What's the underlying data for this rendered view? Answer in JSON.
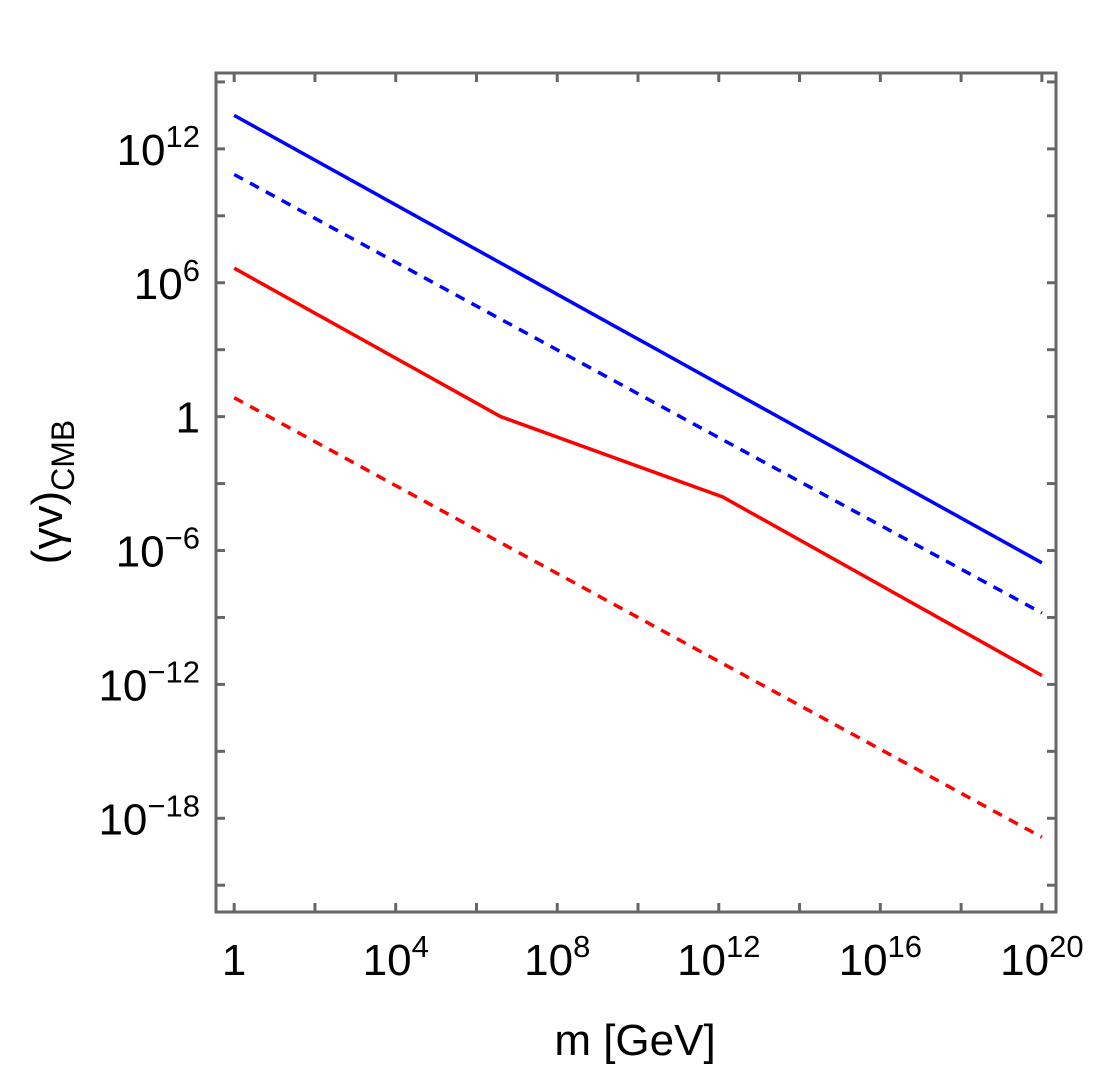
{
  "chart_data": {
    "type": "line",
    "title": "",
    "xlabel": "m [GeV]",
    "ylabel": {
      "main": "(γv)",
      "sub": "CMB"
    },
    "xscale": "log",
    "yscale": "log",
    "xlim_log10": [
      -0.45,
      20.35
    ],
    "ylim_log10": [
      -22.2,
      15.4
    ],
    "grid": false,
    "legend": "none",
    "frame_color": "#666666",
    "x_ticks": [
      {
        "log10": 0,
        "base": "1",
        "exp": ""
      },
      {
        "log10": 4,
        "base": "10",
        "exp": "4"
      },
      {
        "log10": 8,
        "base": "10",
        "exp": "8"
      },
      {
        "log10": 12,
        "base": "10",
        "exp": "12"
      },
      {
        "log10": 16,
        "base": "10",
        "exp": "16"
      },
      {
        "log10": 20,
        "base": "10",
        "exp": "20"
      }
    ],
    "x_minor_ticks_log10": [
      2,
      6,
      10,
      14,
      18
    ],
    "y_ticks": [
      {
        "log10": 12,
        "base": "10",
        "exp": "12"
      },
      {
        "log10": 6,
        "base": "10",
        "exp": "6"
      },
      {
        "log10": 0,
        "base": "1",
        "exp": ""
      },
      {
        "log10": -6,
        "base": "10",
        "exp": "−6"
      },
      {
        "log10": -12,
        "base": "10",
        "exp": "−12"
      },
      {
        "log10": -18,
        "base": "10",
        "exp": "−18"
      }
    ],
    "y_minor_ticks_log10": [
      15,
      9,
      3,
      -3,
      -9,
      -15,
      -21
    ],
    "series": [
      {
        "color": "#0000ff",
        "dash": "solid",
        "points_log10": [
          [
            0,
            13.5
          ],
          [
            20,
            -6.55
          ]
        ]
      },
      {
        "color": "#0000ff",
        "dash": "dashed",
        "points_log10": [
          [
            0,
            10.85
          ],
          [
            20,
            -8.8
          ]
        ]
      },
      {
        "color": "#ff0000",
        "dash": "solid",
        "points_log10": [
          [
            0,
            6.65
          ],
          [
            6.6,
            0.0
          ],
          [
            12.1,
            -3.6
          ],
          [
            20,
            -11.6
          ]
        ]
      },
      {
        "color": "#ff0000",
        "dash": "dashed",
        "points_log10": [
          [
            0,
            0.85
          ],
          [
            20,
            -18.85
          ]
        ]
      }
    ]
  }
}
